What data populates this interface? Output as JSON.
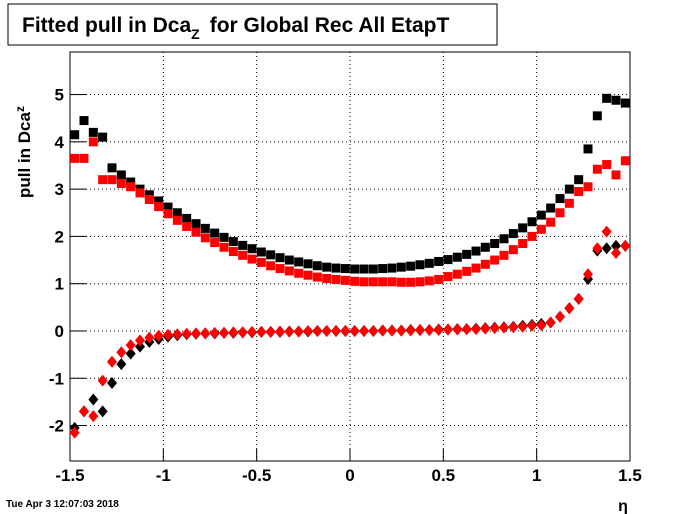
{
  "chart_data": {
    "type": "scatter",
    "title": "Fitted pull in Dca",
    "title_subscript": "Z",
    "title_suffix": "for Global Rec All EtapT",
    "y_label": "pull in Dca",
    "y_label_subscript": "z",
    "x_label": "η",
    "timestamp": "Tue Apr  3 12:07:03 2018",
    "xlim": [
      -1.5,
      1.5
    ],
    "xticks": [
      -1.5,
      -1,
      -0.5,
      0,
      0.5,
      1,
      1.5
    ],
    "ylim": [
      -2.75,
      5.9
    ],
    "yticks": [
      -2,
      -1,
      0,
      1,
      2,
      3,
      4,
      5
    ],
    "grid": true,
    "x": [
      -1.475,
      -1.425,
      -1.375,
      -1.325,
      -1.275,
      -1.225,
      -1.175,
      -1.125,
      -1.075,
      -1.025,
      -0.975,
      -0.925,
      -0.875,
      -0.825,
      -0.775,
      -0.725,
      -0.675,
      -0.625,
      -0.575,
      -0.525,
      -0.475,
      -0.425,
      -0.375,
      -0.325,
      -0.275,
      -0.225,
      -0.175,
      -0.125,
      -0.075,
      -0.025,
      0.025,
      0.075,
      0.125,
      0.175,
      0.225,
      0.275,
      0.325,
      0.375,
      0.425,
      0.475,
      0.525,
      0.575,
      0.625,
      0.675,
      0.725,
      0.775,
      0.825,
      0.875,
      0.925,
      0.975,
      1.025,
      1.075,
      1.125,
      1.175,
      1.225,
      1.275,
      1.325,
      1.375,
      1.425,
      1.475
    ],
    "series": [
      {
        "color": "#000000",
        "marker": "square",
        "values": [
          4.15,
          4.45,
          4.2,
          4.1,
          3.45,
          3.3,
          3.15,
          3.0,
          2.88,
          2.75,
          2.62,
          2.5,
          2.38,
          2.27,
          2.17,
          2.07,
          1.98,
          1.89,
          1.81,
          1.74,
          1.67,
          1.61,
          1.55,
          1.5,
          1.46,
          1.42,
          1.38,
          1.35,
          1.33,
          1.32,
          1.31,
          1.31,
          1.31,
          1.32,
          1.33,
          1.35,
          1.37,
          1.4,
          1.43,
          1.47,
          1.51,
          1.56,
          1.62,
          1.69,
          1.77,
          1.85,
          1.95,
          2.06,
          2.18,
          2.31,
          2.45,
          2.6,
          2.8,
          3.0,
          3.2,
          3.85,
          4.55,
          4.92,
          4.88,
          4.82
        ]
      },
      {
        "color": "#ff0000",
        "marker": "square",
        "values": [
          3.65,
          3.65,
          4.0,
          3.2,
          3.2,
          3.12,
          3.05,
          2.92,
          2.78,
          2.63,
          2.48,
          2.34,
          2.21,
          2.09,
          1.97,
          1.87,
          1.77,
          1.68,
          1.6,
          1.52,
          1.45,
          1.38,
          1.32,
          1.27,
          1.22,
          1.18,
          1.14,
          1.11,
          1.09,
          1.07,
          1.05,
          1.04,
          1.04,
          1.04,
          1.04,
          1.03,
          1.03,
          1.04,
          1.06,
          1.09,
          1.15,
          1.2,
          1.26,
          1.33,
          1.41,
          1.5,
          1.6,
          1.72,
          1.85,
          2.0,
          2.15,
          2.3,
          2.5,
          2.7,
          2.95,
          3.05,
          3.42,
          3.52,
          3.3,
          3.6
        ]
      },
      {
        "color": "#000000",
        "marker": "diamond",
        "values": [
          -2.05,
          -1.7,
          -1.45,
          -1.7,
          -1.1,
          -0.7,
          -0.48,
          -0.33,
          -0.23,
          -0.17,
          -0.12,
          -0.09,
          -0.07,
          -0.06,
          -0.05,
          -0.05,
          -0.04,
          -0.04,
          -0.03,
          -0.03,
          -0.02,
          -0.02,
          -0.02,
          -0.01,
          -0.01,
          -0.01,
          0,
          0,
          0,
          0,
          0,
          0,
          0,
          0.01,
          0.01,
          0.01,
          0.02,
          0.02,
          0.02,
          0.03,
          0.03,
          0.04,
          0.04,
          0.05,
          0.06,
          0.07,
          0.08,
          0.09,
          0.11,
          0.13,
          0.15,
          0.18,
          0.3,
          0.48,
          0.68,
          1.1,
          1.7,
          1.75,
          1.8,
          1.8
        ]
      },
      {
        "color": "#ff0000",
        "marker": "diamond",
        "values": [
          -2.15,
          -1.7,
          -1.8,
          -1.05,
          -0.65,
          -0.45,
          -0.3,
          -0.2,
          -0.14,
          -0.1,
          -0.08,
          -0.07,
          -0.06,
          -0.05,
          -0.05,
          -0.04,
          -0.04,
          -0.03,
          -0.03,
          -0.02,
          -0.02,
          -0.02,
          -0.01,
          -0.01,
          -0.01,
          0,
          0,
          0,
          0,
          0,
          0,
          0,
          0,
          0.01,
          0.01,
          0.01,
          0.01,
          0.02,
          0.02,
          0.02,
          0.03,
          0.03,
          0.04,
          0.04,
          0.05,
          0.06,
          0.07,
          0.08,
          0.09,
          0.11,
          0.12,
          0.18,
          0.3,
          0.48,
          0.68,
          1.2,
          1.75,
          2.1,
          1.65,
          1.8
        ]
      }
    ]
  }
}
